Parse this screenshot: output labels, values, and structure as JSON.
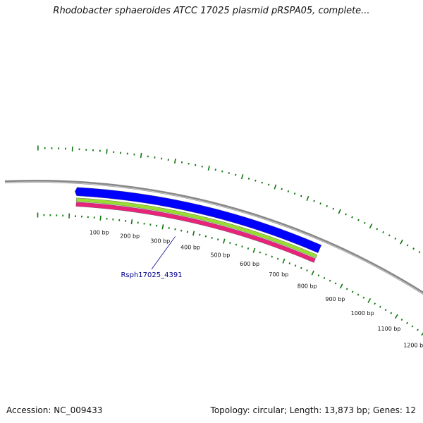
{
  "title": "Rhodobacter sphaeroides ATCC 17025 plasmid pRSPA05, complete...",
  "accession_text": "Accession: NC_009433",
  "summary_text": "Topology: circular; Length: 13,873 bp; Genes: 12",
  "genome": {
    "length_bp": 13873,
    "topology": "circular",
    "gene_count": 12
  },
  "tick_labels": [
    "100 bp",
    "200 bp",
    "300 bp",
    "400 bp",
    "500 bp",
    "600 bp",
    "700 bp",
    "800 bp",
    "900 bp",
    "1000 bp",
    "1100 bp",
    "1200 bp"
  ],
  "features": [
    {
      "name": "Rsph17025_4391",
      "start_bp": 20,
      "end_bp": 790,
      "strand": "-",
      "color": "#0000ff",
      "labeled": true
    },
    {
      "name": "",
      "start_bp": 20,
      "end_bp": 790,
      "strand": "none",
      "color": "#99dd33",
      "labeled": false
    },
    {
      "name": "",
      "start_bp": 20,
      "end_bp": 790,
      "strand": "none",
      "color": "#e8237a",
      "labeled": false
    }
  ],
  "colors": {
    "backbone": "#888888",
    "ticks": "#117711",
    "gene_label": "#00008b"
  }
}
